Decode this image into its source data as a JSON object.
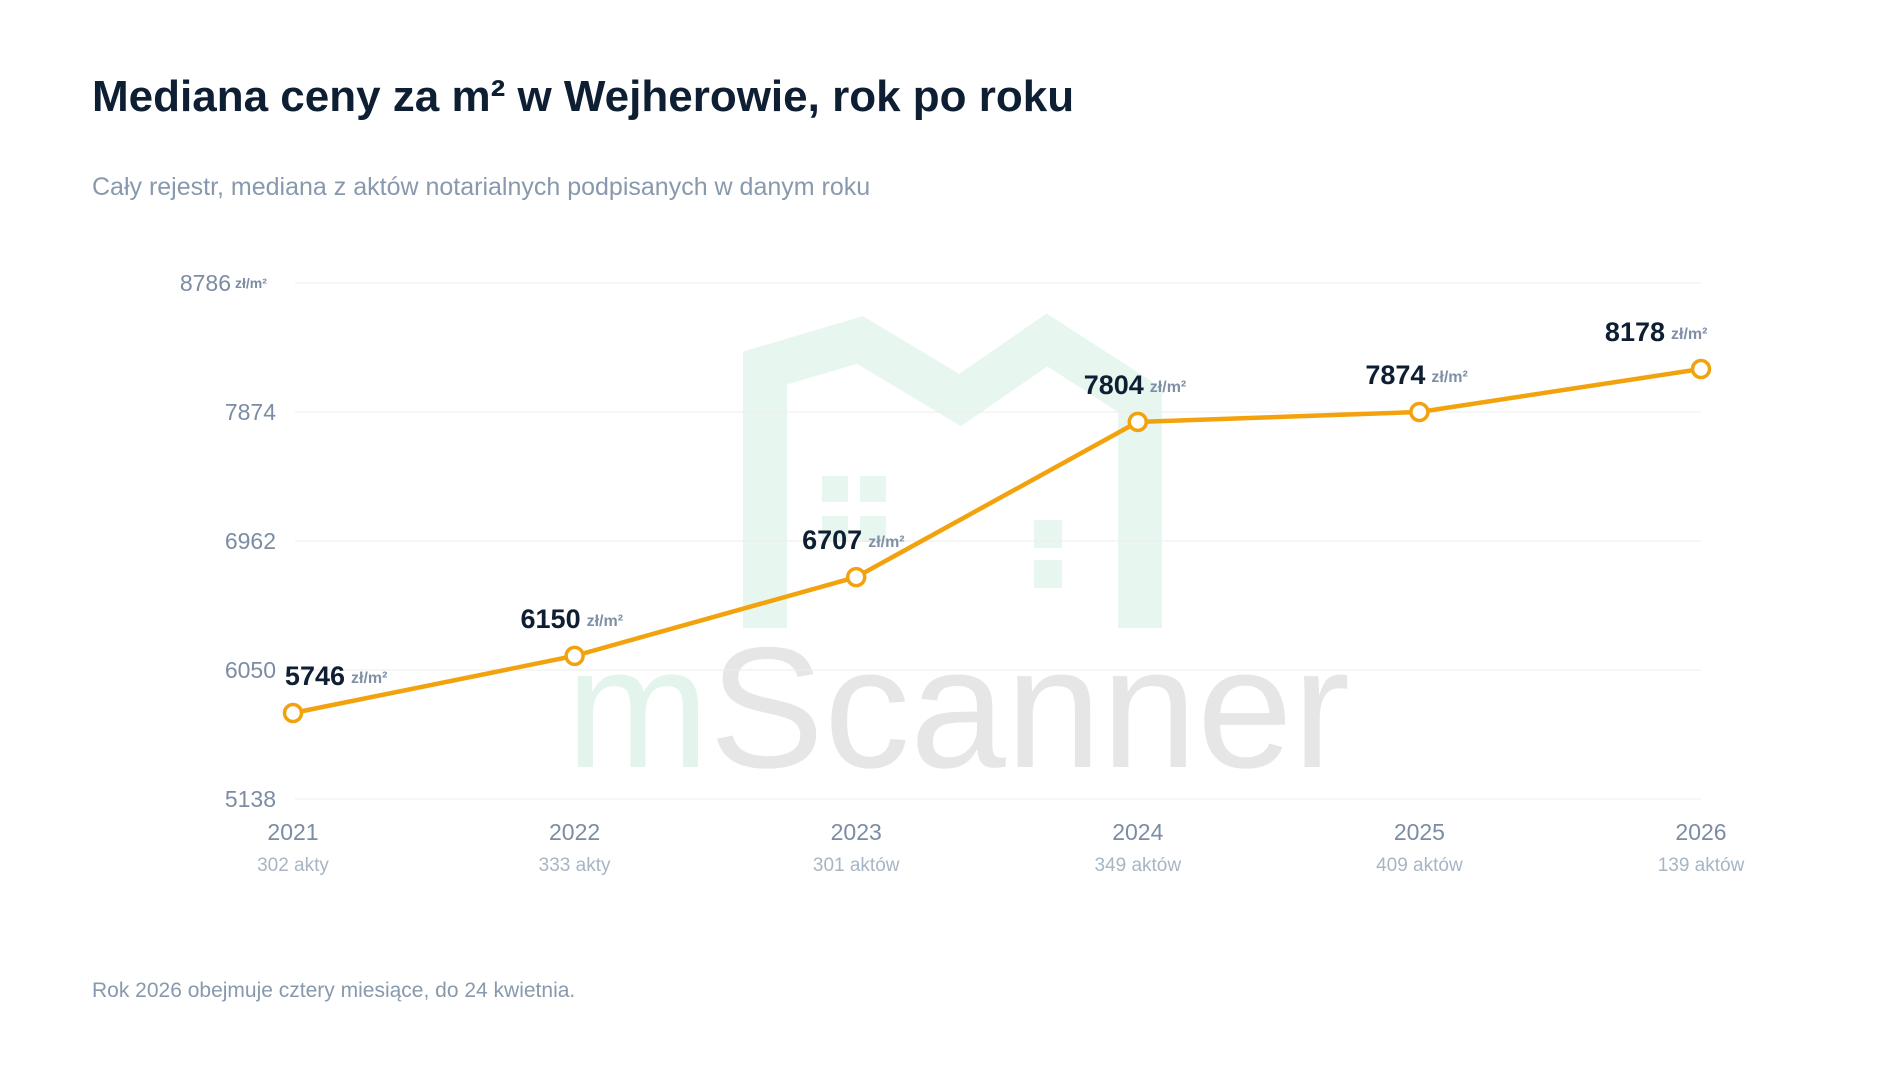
{
  "chart_data": {
    "type": "line",
    "title": "Mediana ceny za m² w Wejherowie, rok po roku",
    "subtitle": "Cały rejestr, mediana z aktów notarialnych podpisanych w danym roku",
    "unit": "zł/m²",
    "categories": [
      "2021",
      "2022",
      "2023",
      "2024",
      "2025",
      "2026"
    ],
    "category_notes": [
      "302 akty",
      "333 akty",
      "301 aktów",
      "349 aktów",
      "409 aktów",
      "139 aktów"
    ],
    "values": [
      5746,
      6150,
      6707,
      7804,
      7874,
      8178
    ],
    "color": "#f2a20c",
    "ylim": [
      5138,
      8786
    ],
    "yticks": [
      5138,
      6050,
      6962,
      7874,
      8786
    ],
    "grid": true,
    "footnote": "Rok 2026 obejmuje cztery miesiące, do 24 kwietnia.",
    "watermark": {
      "prefix": "m",
      "name": "Scanner"
    }
  }
}
